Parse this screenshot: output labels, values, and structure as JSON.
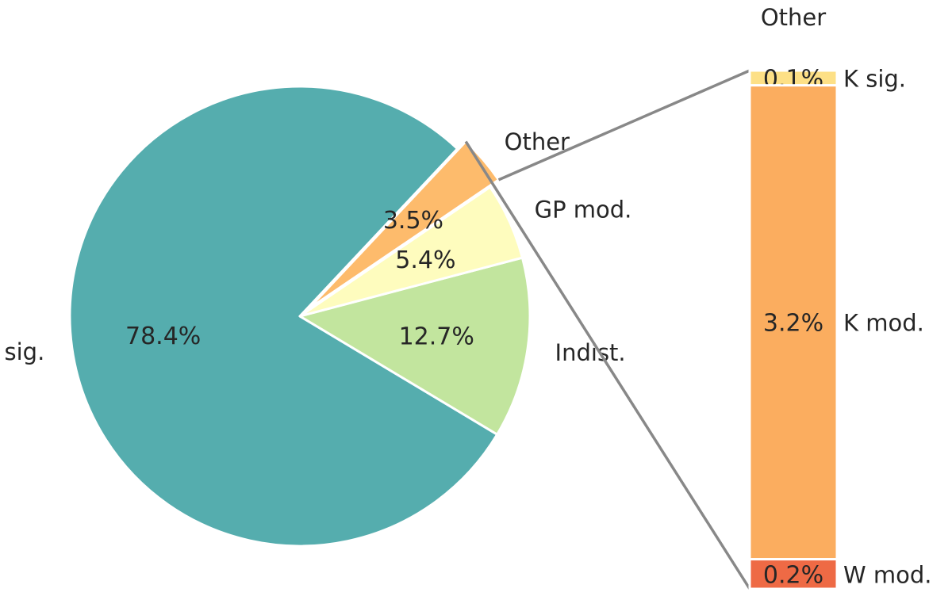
{
  "chart_data": [
    {
      "type": "pie",
      "slices": [
        {
          "label": "GP sig.",
          "pct_label": "78.4%",
          "value": 78.4,
          "color": "#55adae",
          "exploded": false
        },
        {
          "label": "Indist.",
          "pct_label": "12.7%",
          "value": 12.7,
          "color": "#c2e59e",
          "exploded": false
        },
        {
          "label": "GP mod.",
          "pct_label": "5.4%",
          "value": 5.4,
          "color": "#fefcbe",
          "exploded": false
        },
        {
          "label": "Other",
          "pct_label": "3.5%",
          "value": 3.5,
          "color": "#fdbb6c",
          "exploded": true
        }
      ]
    },
    {
      "type": "bar",
      "stacked": true,
      "title": "Other",
      "segments": [
        {
          "label": "K sig.",
          "pct_label": "0.1%",
          "value": 0.1,
          "color": "#fde086"
        },
        {
          "label": "K mod.",
          "pct_label": "3.2%",
          "value": 3.2,
          "color": "#fbad5f"
        },
        {
          "label": "W mod.",
          "pct_label": "0.2%",
          "value": 0.2,
          "color": "#ee6a45"
        }
      ]
    }
  ]
}
